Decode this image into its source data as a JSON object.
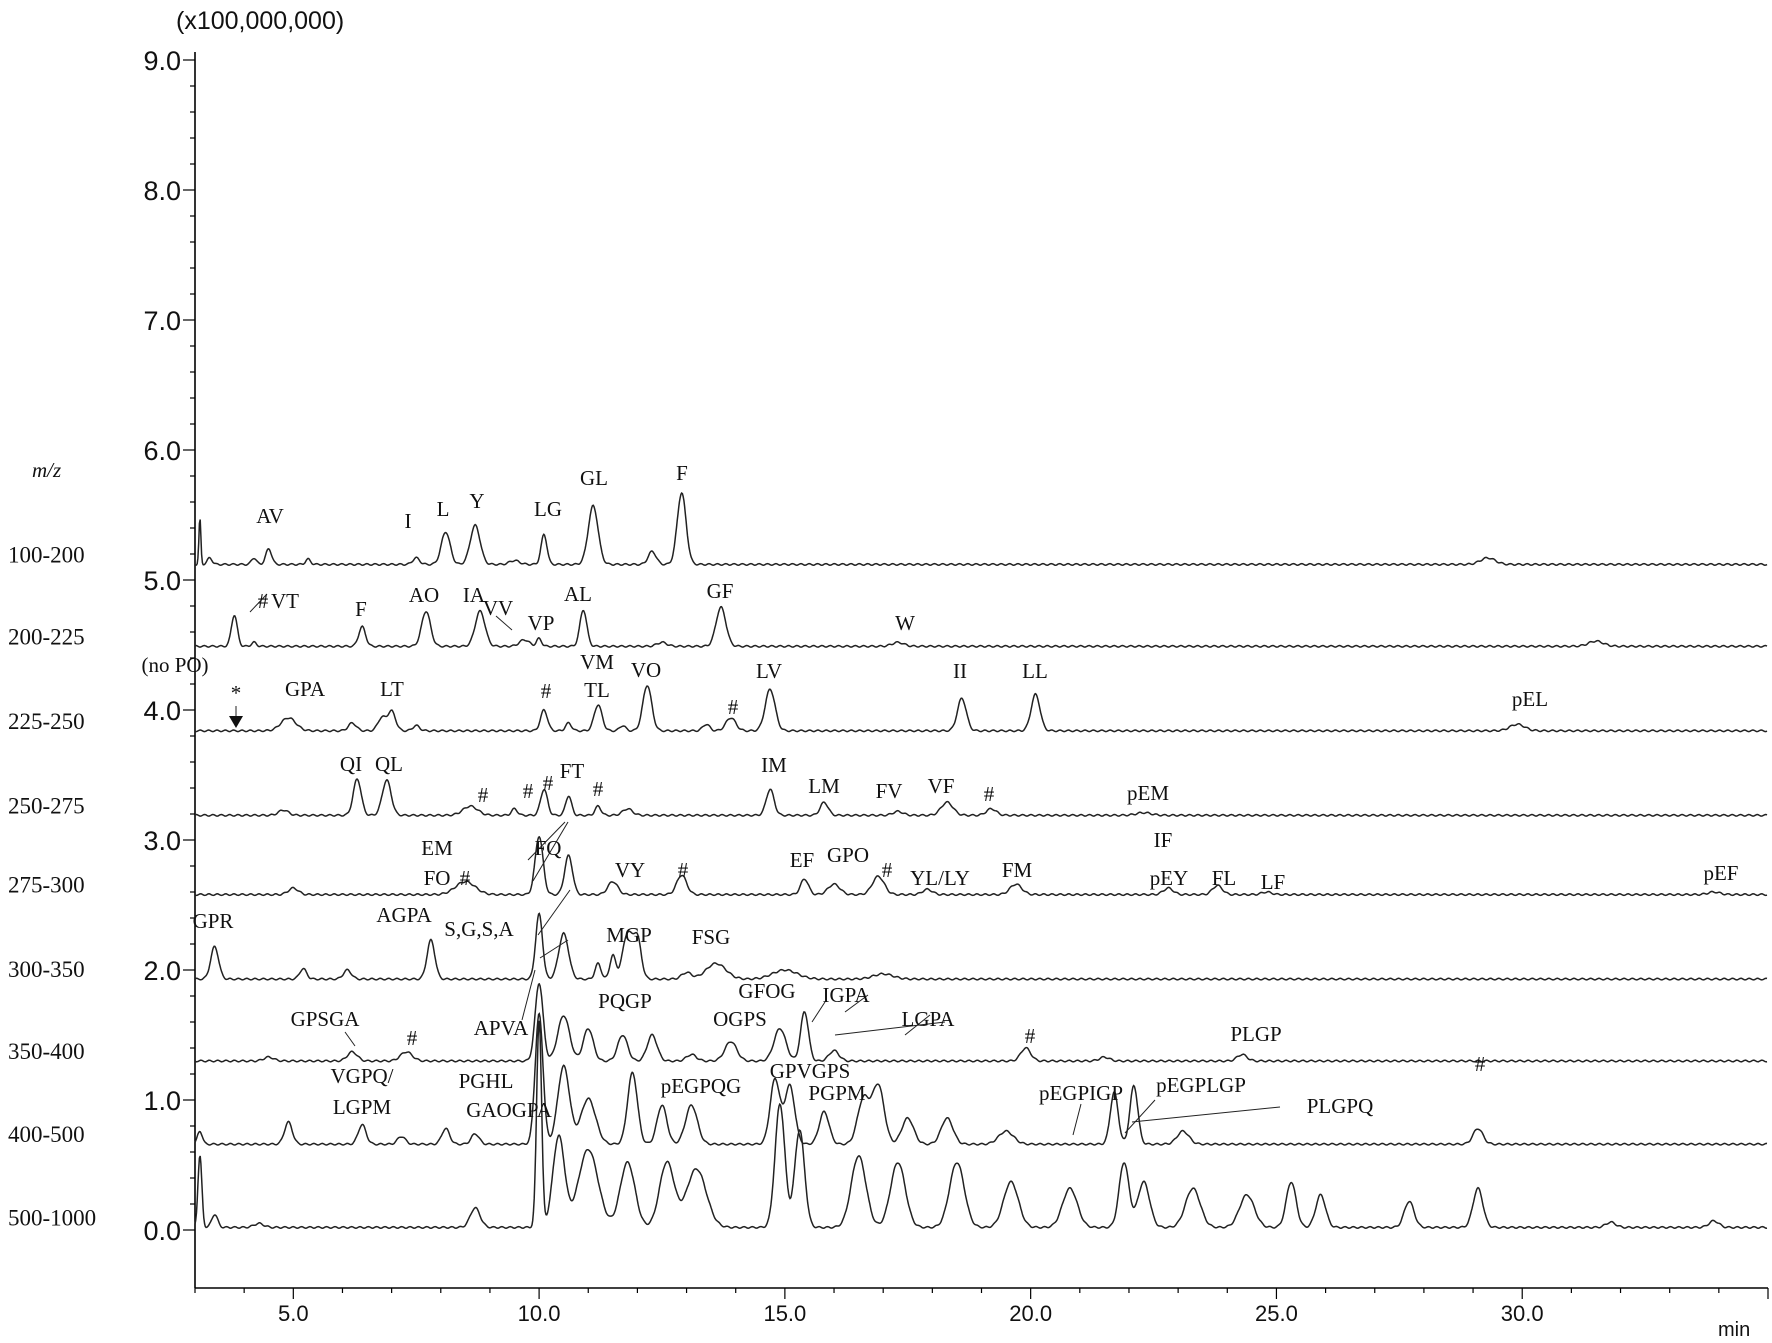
{
  "chart_data": {
    "type": "line",
    "title": "",
    "scale_label": "(x100,000,000)",
    "xlabel": "min",
    "ylabel": "",
    "xlim": [
      3.0,
      35.0
    ],
    "ylim": [
      -0.45,
      9.0
    ],
    "x_ticks": [
      "5.0",
      "10.0",
      "15.0",
      "20.0",
      "25.0",
      "30.0"
    ],
    "y_ticks": [
      "0.0",
      "1.0",
      "2.0",
      "3.0",
      "4.0",
      "5.0",
      "6.0",
      "7.0",
      "8.0",
      "9.0"
    ],
    "mz_title": "m/z",
    "series": [
      {
        "name": "100-200",
        "baseline": 5.12,
        "peaks": [
          [
            3.1,
            0.35,
            0.02
          ],
          [
            3.3,
            0.05,
            0.05
          ],
          [
            4.2,
            0.05,
            0.05
          ],
          [
            4.5,
            0.12,
            0.06
          ],
          [
            5.3,
            0.04,
            0.05
          ],
          [
            7.5,
            0.05,
            0.07
          ],
          [
            8.1,
            0.25,
            0.09
          ],
          [
            8.7,
            0.3,
            0.1
          ],
          [
            9.5,
            0.03,
            0.1
          ],
          [
            10.1,
            0.23,
            0.06
          ],
          [
            11.1,
            0.45,
            0.1
          ],
          [
            12.3,
            0.1,
            0.08
          ],
          [
            12.9,
            0.55,
            0.09
          ],
          [
            29.3,
            0.05,
            0.15
          ]
        ]
      },
      {
        "name": "200-225",
        "baseline": 4.49,
        "peaks": [
          [
            3.8,
            0.24,
            0.06
          ],
          [
            4.2,
            0.03,
            0.05
          ],
          [
            6.4,
            0.15,
            0.07
          ],
          [
            7.7,
            0.27,
            0.09
          ],
          [
            8.8,
            0.27,
            0.1
          ],
          [
            9.7,
            0.05,
            0.1
          ],
          [
            10.0,
            0.06,
            0.05
          ],
          [
            10.9,
            0.28,
            0.07
          ],
          [
            12.5,
            0.03,
            0.1
          ],
          [
            13.7,
            0.3,
            0.1
          ],
          [
            17.3,
            0.03,
            0.12
          ],
          [
            31.5,
            0.04,
            0.15
          ]
        ]
      },
      {
        "name": "225-250",
        "baseline": 3.84,
        "peaks": [
          [
            4.9,
            0.1,
            0.15
          ],
          [
            6.2,
            0.06,
            0.08
          ],
          [
            6.8,
            0.1,
            0.08
          ],
          [
            7.0,
            0.15,
            0.08
          ],
          [
            7.5,
            0.04,
            0.07
          ],
          [
            10.1,
            0.16,
            0.07
          ],
          [
            10.6,
            0.06,
            0.06
          ],
          [
            11.2,
            0.2,
            0.08
          ],
          [
            11.7,
            0.04,
            0.06
          ],
          [
            12.2,
            0.35,
            0.09
          ],
          [
            13.4,
            0.05,
            0.07
          ],
          [
            13.9,
            0.1,
            0.1
          ],
          [
            14.7,
            0.32,
            0.1
          ],
          [
            18.6,
            0.25,
            0.09
          ],
          [
            20.1,
            0.28,
            0.09
          ],
          [
            29.9,
            0.05,
            0.15
          ]
        ]
      },
      {
        "name": "250-275",
        "baseline": 3.19,
        "peaks": [
          [
            4.8,
            0.04,
            0.1
          ],
          [
            6.3,
            0.28,
            0.08
          ],
          [
            6.9,
            0.27,
            0.09
          ],
          [
            8.6,
            0.07,
            0.15
          ],
          [
            9.5,
            0.05,
            0.06
          ],
          [
            10.1,
            0.2,
            0.07
          ],
          [
            10.6,
            0.15,
            0.06
          ],
          [
            11.2,
            0.07,
            0.06
          ],
          [
            11.8,
            0.05,
            0.1
          ],
          [
            14.7,
            0.2,
            0.08
          ],
          [
            15.8,
            0.1,
            0.08
          ],
          [
            17.3,
            0.03,
            0.1
          ],
          [
            18.3,
            0.1,
            0.12
          ],
          [
            19.2,
            0.05,
            0.1
          ],
          [
            22.3,
            0.02,
            0.15
          ]
        ]
      },
      {
        "name": "275-300",
        "baseline": 2.58,
        "peaks": [
          [
            5.0,
            0.05,
            0.1
          ],
          [
            8.5,
            0.1,
            0.2
          ],
          [
            10.0,
            0.45,
            0.08
          ],
          [
            10.6,
            0.3,
            0.08
          ],
          [
            11.5,
            0.1,
            0.1
          ],
          [
            12.9,
            0.15,
            0.1
          ],
          [
            15.4,
            0.12,
            0.08
          ],
          [
            16.0,
            0.08,
            0.12
          ],
          [
            16.9,
            0.14,
            0.12
          ],
          [
            17.9,
            0.04,
            0.1
          ],
          [
            19.7,
            0.08,
            0.12
          ],
          [
            22.8,
            0.05,
            0.1
          ],
          [
            23.8,
            0.07,
            0.1
          ],
          [
            24.8,
            0.02,
            0.1
          ],
          [
            33.9,
            0.02,
            0.12
          ]
        ]
      },
      {
        "name": "300-350",
        "baseline": 1.93,
        "peaks": [
          [
            3.4,
            0.25,
            0.08
          ],
          [
            5.2,
            0.08,
            0.07
          ],
          [
            6.1,
            0.07,
            0.08
          ],
          [
            7.8,
            0.3,
            0.08
          ],
          [
            10.0,
            0.5,
            0.07
          ],
          [
            10.5,
            0.35,
            0.1
          ],
          [
            11.2,
            0.12,
            0.06
          ],
          [
            11.5,
            0.18,
            0.06
          ],
          [
            11.8,
            0.35,
            0.1
          ],
          [
            12.0,
            0.3,
            0.08
          ],
          [
            13.0,
            0.05,
            0.1
          ],
          [
            13.6,
            0.12,
            0.2
          ],
          [
            15.0,
            0.07,
            0.25
          ],
          [
            17.0,
            0.04,
            0.2
          ]
        ]
      },
      {
        "name": "350-400",
        "baseline": 1.3,
        "peaks": [
          [
            4.5,
            0.03,
            0.1
          ],
          [
            6.2,
            0.07,
            0.1
          ],
          [
            7.3,
            0.07,
            0.12
          ],
          [
            10.0,
            0.6,
            0.08
          ],
          [
            10.5,
            0.35,
            0.12
          ],
          [
            11.0,
            0.25,
            0.1
          ],
          [
            11.7,
            0.2,
            0.1
          ],
          [
            12.3,
            0.2,
            0.1
          ],
          [
            13.1,
            0.05,
            0.1
          ],
          [
            13.9,
            0.15,
            0.12
          ],
          [
            14.9,
            0.25,
            0.12
          ],
          [
            15.4,
            0.38,
            0.08
          ],
          [
            16.0,
            0.08,
            0.1
          ],
          [
            19.9,
            0.1,
            0.1
          ],
          [
            21.5,
            0.03,
            0.1
          ],
          [
            24.3,
            0.05,
            0.1
          ]
        ]
      },
      {
        "name": "400-500",
        "baseline": 0.66,
        "peaks": [
          [
            3.1,
            0.1,
            0.05
          ],
          [
            4.9,
            0.17,
            0.08
          ],
          [
            6.4,
            0.15,
            0.08
          ],
          [
            7.2,
            0.06,
            0.08
          ],
          [
            8.1,
            0.12,
            0.08
          ],
          [
            8.7,
            0.08,
            0.08
          ],
          [
            10.0,
            1.0,
            0.08
          ],
          [
            10.5,
            0.6,
            0.12
          ],
          [
            11.0,
            0.35,
            0.15
          ],
          [
            11.9,
            0.55,
            0.1
          ],
          [
            12.5,
            0.3,
            0.1
          ],
          [
            13.1,
            0.3,
            0.12
          ],
          [
            14.8,
            0.5,
            0.1
          ],
          [
            15.1,
            0.45,
            0.1
          ],
          [
            15.8,
            0.25,
            0.1
          ],
          [
            16.6,
            0.35,
            0.12
          ],
          [
            16.9,
            0.45,
            0.12
          ],
          [
            17.5,
            0.2,
            0.12
          ],
          [
            18.3,
            0.2,
            0.12
          ],
          [
            19.5,
            0.1,
            0.15
          ],
          [
            21.7,
            0.4,
            0.08
          ],
          [
            22.1,
            0.45,
            0.08
          ],
          [
            23.1,
            0.1,
            0.12
          ],
          [
            29.1,
            0.12,
            0.1
          ]
        ]
      },
      {
        "name": "500-1000",
        "baseline": 0.02,
        "peaks": [
          [
            3.1,
            0.55,
            0.04
          ],
          [
            3.4,
            0.1,
            0.06
          ],
          [
            4.3,
            0.03,
            0.1
          ],
          [
            8.7,
            0.15,
            0.1
          ],
          [
            10.0,
            1.6,
            0.05
          ],
          [
            10.4,
            0.7,
            0.12
          ],
          [
            11.0,
            0.6,
            0.2
          ],
          [
            11.8,
            0.5,
            0.15
          ],
          [
            12.6,
            0.5,
            0.15
          ],
          [
            13.2,
            0.45,
            0.2
          ],
          [
            14.9,
            0.95,
            0.1
          ],
          [
            15.3,
            0.75,
            0.1
          ],
          [
            16.5,
            0.55,
            0.15
          ],
          [
            17.3,
            0.5,
            0.15
          ],
          [
            18.5,
            0.5,
            0.15
          ],
          [
            19.6,
            0.35,
            0.15
          ],
          [
            20.8,
            0.3,
            0.15
          ],
          [
            21.9,
            0.5,
            0.1
          ],
          [
            22.3,
            0.35,
            0.12
          ],
          [
            23.3,
            0.3,
            0.15
          ],
          [
            24.4,
            0.25,
            0.15
          ],
          [
            25.3,
            0.35,
            0.1
          ],
          [
            25.9,
            0.25,
            0.1
          ],
          [
            27.7,
            0.2,
            0.1
          ],
          [
            29.1,
            0.3,
            0.1
          ],
          [
            31.8,
            0.04,
            0.1
          ],
          [
            33.9,
            0.05,
            0.1
          ]
        ]
      }
    ],
    "annotations": [
      "AV",
      "I",
      "L",
      "Y",
      "LG",
      "GL",
      "F",
      "#",
      "VT",
      "F",
      "AO",
      "IA",
      "VV",
      "VP",
      "AL",
      "GF",
      "W",
      "(no PO)",
      "*",
      "GPA",
      "LT",
      "#",
      "VM",
      "TL",
      "VO",
      "#",
      "LV",
      "II",
      "LL",
      "pEL",
      "QI",
      "QL",
      "#",
      "#",
      "#",
      "FT",
      "#",
      "IM",
      "LM",
      "FV",
      "VF",
      "#",
      "pEM",
      "EM",
      "FO",
      "#",
      "FQ",
      "VY",
      "#",
      "EF",
      "GPO",
      "#",
      "YL/LY",
      "FM",
      "IF",
      "pEY",
      "FL",
      "LF",
      "pEF",
      "GPR",
      "AGPA",
      "S,G,S,A",
      "MGP",
      "FSG",
      "GPSGA",
      "#",
      "APVA",
      "PQGP",
      "GFOG",
      "OGPS",
      "IGPA",
      "LGPA",
      "#",
      "PLGP",
      "VGPQ/",
      "LGPM",
      "PGHL",
      "GAOGPA",
      "pEGPQG",
      "GPVGPS",
      "PGPM",
      "pEGPIGP",
      "pEGPLGP",
      "PLGPQ",
      "#"
    ]
  }
}
